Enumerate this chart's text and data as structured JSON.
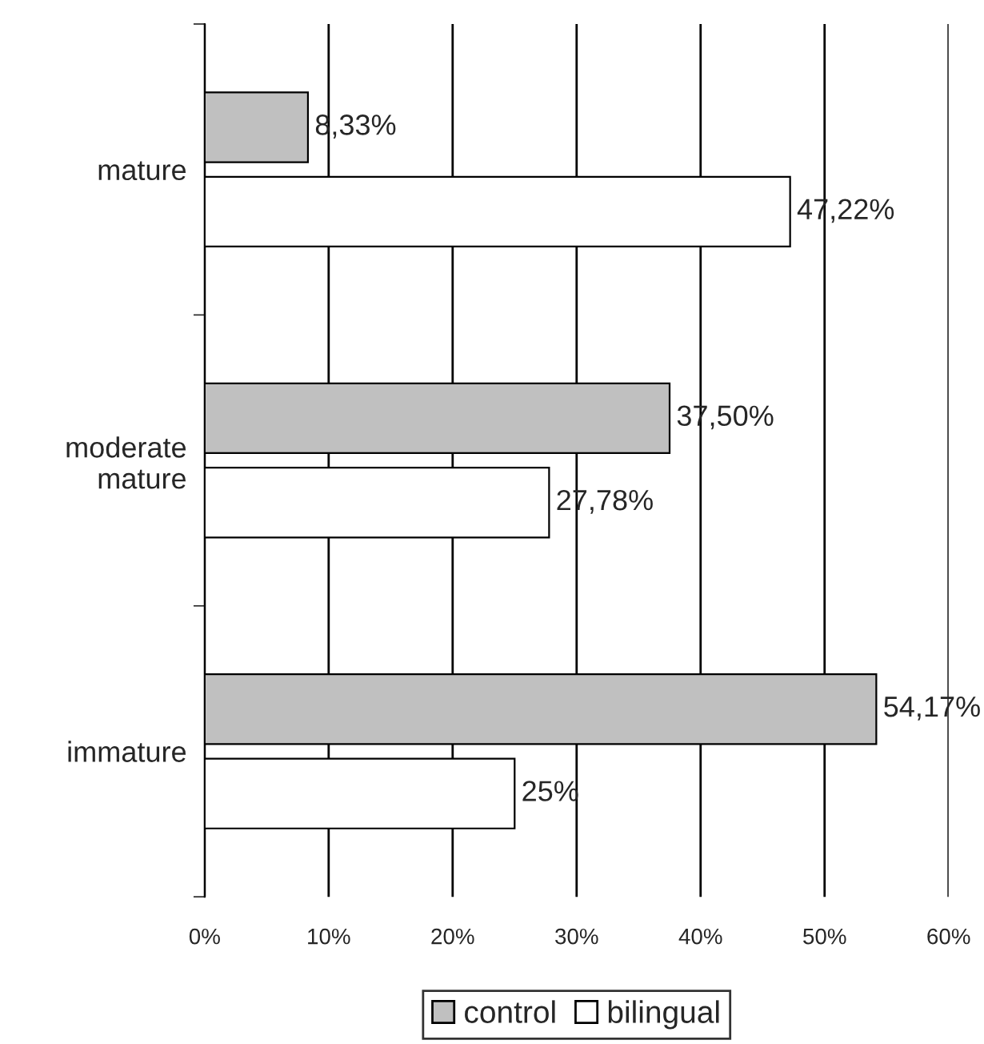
{
  "chart_data": {
    "type": "bar",
    "orientation": "horizontal",
    "categories": [
      "mature",
      "moderate\nmature",
      "immature"
    ],
    "series": [
      {
        "name": "control",
        "color": "#c0c0c0",
        "values": [
          8.33,
          37.5,
          54.17
        ],
        "value_labels": [
          "8,33%",
          "37,50%",
          "54,17%"
        ]
      },
      {
        "name": "bilingual",
        "color": "#ffffff",
        "values": [
          47.22,
          27.78,
          25
        ],
        "value_labels": [
          "47,22%",
          "27,78%",
          "25%"
        ]
      }
    ],
    "xlim": [
      0,
      60
    ],
    "xticks": [
      {
        "value": 0,
        "label": "0%"
      },
      {
        "value": 10,
        "label": "10%"
      },
      {
        "value": 20,
        "label": "20%"
      },
      {
        "value": 30,
        "label": "30%"
      },
      {
        "value": 40,
        "label": "40%"
      },
      {
        "value": 50,
        "label": "50%"
      },
      {
        "value": 60,
        "label": "60%"
      }
    ],
    "grid": "x",
    "legend": "bottom"
  }
}
